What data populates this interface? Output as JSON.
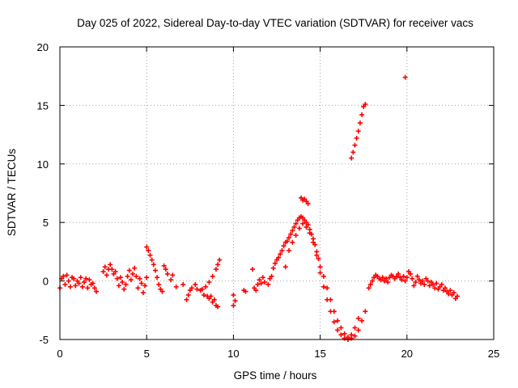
{
  "chart_data": {
    "type": "scatter",
    "title": "Day 025 of 2022, Sidereal Day-to-day VTEC variation (SDTVAR) for receiver vacs",
    "xlabel": "GPS time / hours",
    "ylabel": "SDTVAR / TECUs",
    "xlim": [
      0,
      25
    ],
    "ylim": [
      -5,
      20
    ],
    "xticks": [
      0,
      5,
      10,
      15,
      20,
      25
    ],
    "yticks": [
      -5,
      0,
      5,
      10,
      15,
      20
    ],
    "xtick_labels": [
      "0",
      "5",
      "10",
      "15",
      "20",
      "25"
    ],
    "ytick_labels": [
      "-5",
      "0",
      "5",
      "10",
      "15",
      "20"
    ],
    "grid": true,
    "marker": "+",
    "marker_color": "#ff0000",
    "series": [
      {
        "name": "SDTVAR",
        "points": [
          [
            0.0,
            -0.6
          ],
          [
            0.1,
            0.2
          ],
          [
            0.2,
            0.4
          ],
          [
            0.3,
            -0.3
          ],
          [
            0.4,
            0.5
          ],
          [
            0.5,
            0.0
          ],
          [
            0.6,
            -0.5
          ],
          [
            0.7,
            0.3
          ],
          [
            0.8,
            0.2
          ],
          [
            0.9,
            -0.4
          ],
          [
            1.0,
            0.0
          ],
          [
            1.1,
            -0.2
          ],
          [
            1.2,
            0.3
          ],
          [
            1.3,
            -0.5
          ],
          [
            1.4,
            -0.1
          ],
          [
            1.5,
            0.2
          ],
          [
            1.6,
            -0.6
          ],
          [
            1.7,
            0.1
          ],
          [
            1.8,
            -0.3
          ],
          [
            1.9,
            -0.2
          ],
          [
            2.0,
            -0.6
          ],
          [
            2.1,
            -0.9
          ],
          [
            2.5,
            0.8
          ],
          [
            2.6,
            1.2
          ],
          [
            2.7,
            0.5
          ],
          [
            2.8,
            1.0
          ],
          [
            2.9,
            1.4
          ],
          [
            3.0,
            1.0
          ],
          [
            3.1,
            0.6
          ],
          [
            3.2,
            0.8
          ],
          [
            3.3,
            0.2
          ],
          [
            3.4,
            -0.4
          ],
          [
            3.5,
            0.3
          ],
          [
            3.6,
            -0.1
          ],
          [
            3.7,
            -0.7
          ],
          [
            3.8,
            -0.3
          ],
          [
            3.9,
            0.4
          ],
          [
            4.0,
            0.9
          ],
          [
            4.1,
            0.1
          ],
          [
            4.2,
            0.6
          ],
          [
            4.3,
            1.1
          ],
          [
            4.4,
            0.4
          ],
          [
            4.5,
            -0.6
          ],
          [
            4.6,
            0.2
          ],
          [
            4.7,
            -0.2
          ],
          [
            4.8,
            -1.0
          ],
          [
            4.9,
            -0.4
          ],
          [
            5.0,
            0.3
          ],
          [
            5.0,
            2.9
          ],
          [
            5.1,
            2.6
          ],
          [
            5.2,
            2.2
          ],
          [
            5.3,
            1.8
          ],
          [
            5.4,
            1.4
          ],
          [
            5.5,
            0.9
          ],
          [
            5.6,
            0.3
          ],
          [
            5.7,
            -0.3
          ],
          [
            5.8,
            -0.7
          ],
          [
            5.9,
            -0.9
          ],
          [
            6.0,
            1.3
          ],
          [
            6.1,
            1.0
          ],
          [
            6.2,
            0.6
          ],
          [
            6.4,
            0.1
          ],
          [
            6.5,
            0.5
          ],
          [
            6.7,
            -0.5
          ],
          [
            7.1,
            -0.3
          ],
          [
            7.3,
            -1.6
          ],
          [
            7.4,
            -1.2
          ],
          [
            7.5,
            -0.8
          ],
          [
            7.6,
            -0.6
          ],
          [
            7.8,
            -0.3
          ],
          [
            7.9,
            -0.7
          ],
          [
            8.1,
            -0.8
          ],
          [
            8.2,
            -0.7
          ],
          [
            8.3,
            -1.2
          ],
          [
            8.5,
            -1.3
          ],
          [
            8.6,
            -1.5
          ],
          [
            8.7,
            -1.3
          ],
          [
            8.8,
            -1.8
          ],
          [
            8.9,
            -1.6
          ],
          [
            9.0,
            -2.1
          ],
          [
            9.1,
            -2.2
          ],
          [
            8.4,
            -0.5
          ],
          [
            8.6,
            -0.1
          ],
          [
            8.8,
            0.4
          ],
          [
            9.0,
            1.0
          ],
          [
            9.1,
            1.4
          ],
          [
            9.2,
            1.8
          ],
          [
            10.0,
            -1.2
          ],
          [
            10.1,
            -1.7
          ],
          [
            10.0,
            -2.1
          ],
          [
            10.6,
            -0.8
          ],
          [
            10.7,
            -0.9
          ],
          [
            11.1,
            1.0
          ],
          [
            11.2,
            -0.6
          ],
          [
            11.3,
            -0.8
          ],
          [
            11.4,
            -0.3
          ],
          [
            11.5,
            0.1
          ],
          [
            11.6,
            -0.2
          ],
          [
            11.7,
            0.3
          ],
          [
            11.8,
            -0.1
          ],
          [
            12.0,
            -0.3
          ],
          [
            12.1,
            0.2
          ],
          [
            12.2,
            0.4
          ],
          [
            12.3,
            1.1
          ],
          [
            12.4,
            1.5
          ],
          [
            12.5,
            1.8
          ],
          [
            12.6,
            2.0
          ],
          [
            12.7,
            2.3
          ],
          [
            12.8,
            2.6
          ],
          [
            12.9,
            3.0
          ],
          [
            13.0,
            3.3
          ],
          [
            13.1,
            3.4
          ],
          [
            13.2,
            3.7
          ],
          [
            13.3,
            4.0
          ],
          [
            13.4,
            4.3
          ],
          [
            13.5,
            4.6
          ],
          [
            13.6,
            4.9
          ],
          [
            13.7,
            5.2
          ],
          [
            13.8,
            5.4
          ],
          [
            13.9,
            5.5
          ],
          [
            14.0,
            5.4
          ],
          [
            14.1,
            5.2
          ],
          [
            14.2,
            5.0
          ],
          [
            14.3,
            4.8
          ],
          [
            14.4,
            4.4
          ],
          [
            14.5,
            4.0
          ],
          [
            14.6,
            3.6
          ],
          [
            14.7,
            3.1
          ],
          [
            14.8,
            2.5
          ],
          [
            14.9,
            1.9
          ],
          [
            15.0,
            1.2
          ],
          [
            15.2,
            0.4
          ],
          [
            15.4,
            -0.6
          ],
          [
            15.6,
            -1.6
          ],
          [
            15.8,
            -2.6
          ],
          [
            16.0,
            -3.4
          ],
          [
            16.2,
            -4.0
          ],
          [
            16.4,
            -4.5
          ],
          [
            16.6,
            -4.8
          ],
          [
            16.8,
            -4.9
          ],
          [
            17.0,
            -4.7
          ],
          [
            17.2,
            -4.2
          ],
          [
            17.4,
            -3.4
          ],
          [
            17.6,
            -2.6
          ],
          [
            13.0,
            1.2
          ],
          [
            13.2,
            2.6
          ],
          [
            13.4,
            3.3
          ],
          [
            13.6,
            3.9
          ],
          [
            13.8,
            4.5
          ],
          [
            14.0,
            4.9
          ],
          [
            14.2,
            4.6
          ],
          [
            14.4,
            4.1
          ],
          [
            14.6,
            3.3
          ],
          [
            14.8,
            2.2
          ],
          [
            15.0,
            0.7
          ],
          [
            15.2,
            -0.5
          ],
          [
            15.4,
            -1.6
          ],
          [
            15.6,
            -2.6
          ],
          [
            15.8,
            -3.5
          ],
          [
            16.0,
            -4.2
          ],
          [
            16.2,
            -4.6
          ],
          [
            16.4,
            -4.9
          ],
          [
            16.6,
            -5.0
          ],
          [
            16.8,
            -4.6
          ],
          [
            17.0,
            -4.0
          ],
          [
            17.2,
            -3.2
          ],
          [
            13.9,
            7.1
          ],
          [
            14.0,
            6.9
          ],
          [
            14.1,
            7.0
          ],
          [
            14.2,
            6.8
          ],
          [
            14.3,
            6.6
          ],
          [
            16.8,
            10.5
          ],
          [
            16.9,
            11.0
          ],
          [
            17.0,
            11.6
          ],
          [
            17.1,
            12.2
          ],
          [
            17.2,
            12.8
          ],
          [
            17.3,
            13.5
          ],
          [
            17.4,
            14.2
          ],
          [
            17.5,
            14.9
          ],
          [
            17.6,
            15.1
          ],
          [
            19.9,
            17.4
          ],
          [
            17.8,
            -0.6
          ],
          [
            17.9,
            -0.3
          ],
          [
            18.0,
            0.0
          ],
          [
            18.1,
            0.3
          ],
          [
            18.2,
            0.5
          ],
          [
            18.3,
            0.4
          ],
          [
            18.4,
            0.2
          ],
          [
            18.5,
            0.1
          ],
          [
            18.6,
            0.3
          ],
          [
            18.7,
            0.0
          ],
          [
            18.8,
            0.2
          ],
          [
            18.9,
            -0.1
          ],
          [
            19.0,
            0.3
          ],
          [
            19.1,
            0.5
          ],
          [
            19.2,
            0.4
          ],
          [
            19.3,
            0.2
          ],
          [
            19.4,
            0.4
          ],
          [
            19.5,
            0.6
          ],
          [
            19.6,
            0.3
          ],
          [
            19.7,
            0.1
          ],
          [
            19.8,
            0.4
          ],
          [
            19.9,
            0.0
          ],
          [
            20.0,
            0.3
          ],
          [
            20.1,
            0.8
          ],
          [
            20.2,
            0.6
          ],
          [
            20.3,
            0.2
          ],
          [
            20.4,
            -0.4
          ],
          [
            20.5,
            -0.1
          ],
          [
            20.6,
            0.4
          ],
          [
            20.7,
            0.1
          ],
          [
            20.8,
            -0.2
          ],
          [
            20.9,
            0.0
          ],
          [
            21.0,
            -0.3
          ],
          [
            21.1,
            0.2
          ],
          [
            21.2,
            0.0
          ],
          [
            21.3,
            -0.4
          ],
          [
            21.4,
            -0.1
          ],
          [
            21.5,
            -0.3
          ],
          [
            21.6,
            -0.6
          ],
          [
            21.7,
            -0.2
          ],
          [
            21.8,
            -0.7
          ],
          [
            21.9,
            -0.5
          ],
          [
            22.0,
            -0.3
          ],
          [
            22.1,
            -0.8
          ],
          [
            22.2,
            -0.6
          ],
          [
            22.3,
            -0.9
          ],
          [
            22.4,
            -1.1
          ],
          [
            22.5,
            -0.8
          ],
          [
            22.6,
            -1.2
          ],
          [
            22.7,
            -1.0
          ],
          [
            22.8,
            -1.5
          ],
          [
            22.9,
            -1.3
          ]
        ]
      }
    ]
  }
}
